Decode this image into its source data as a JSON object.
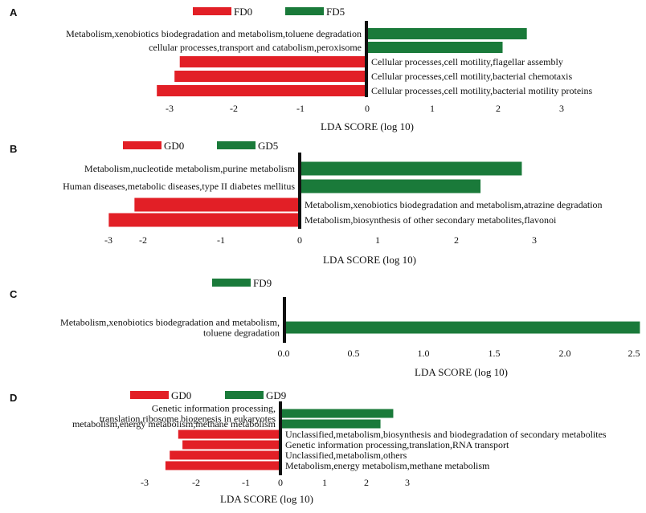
{
  "chart_data": [
    {
      "panel": "A",
      "type": "bar",
      "orientation": "horizontal",
      "xlabel": "LDA SCORE (log 10)",
      "legend": [
        {
          "name": "FD0",
          "color": "#e21f26"
        },
        {
          "name": "FD5",
          "color": "#1a7a3a"
        }
      ],
      "ticks": [
        "-3",
        "-2",
        "-1",
        "0",
        "1",
        "2",
        "3"
      ],
      "xlim": [
        -3.3,
        3.3
      ],
      "bars": [
        {
          "label": "Metabolism,xenobiotics biodegradation and metabolism,toluene degradation",
          "value": 2.45,
          "group": "FD5"
        },
        {
          "label": "cellular processes,transport and catabolism,peroxisome",
          "value": 2.08,
          "group": "FD5"
        },
        {
          "label": "Cellular processes,cell motility,flagellar assembly",
          "value": -2.85,
          "group": "FD0"
        },
        {
          "label": "Cellular processes,cell motility,bacterial chemotaxis",
          "value": -2.93,
          "group": "FD0"
        },
        {
          "label": "Cellular processes,cell motility,bacterial motility proteins",
          "value": -3.2,
          "group": "FD0"
        }
      ]
    },
    {
      "panel": "B",
      "type": "bar",
      "orientation": "horizontal",
      "xlabel": "LDA SCORE (log 10)",
      "legend": [
        {
          "name": "GD0",
          "color": "#e21f26"
        },
        {
          "name": "GD5",
          "color": "#1a7a3a"
        }
      ],
      "ticks": [
        "-3",
        "-2",
        "-1",
        "0",
        "1",
        "2",
        "3"
      ],
      "xlim": [
        -3.3,
        3.3
      ],
      "bars": [
        {
          "label": "Metabolism,nucleotide metabolism,purine metabolism",
          "value": 2.85,
          "group": "GD5"
        },
        {
          "label": "Human diseases,metabolic diseases,type II diabetes mellitus",
          "value": 2.32,
          "group": "GD5"
        },
        {
          "label": "Metabolism,xenobiotics biodegradation and metabolism,atrazine degradation",
          "value": -2.12,
          "group": "GD0"
        },
        {
          "label": "Metabolism,biosynthesis of other secondary metabolites,flavonoi",
          "value": -2.45,
          "group": "GD0"
        }
      ]
    },
    {
      "panel": "C",
      "type": "bar",
      "orientation": "horizontal",
      "xlabel": "LDA SCORE (log 10)",
      "legend": [
        {
          "name": "FD9",
          "color": "#1a7a3a"
        }
      ],
      "ticks": [
        "0.0",
        "0.5",
        "1.0",
        "1.5",
        "2.0",
        "2.5"
      ],
      "xlim": [
        0,
        2.55
      ],
      "bars": [
        {
          "label": "Metabolism,xenobiotics biodegradation and metabolism,\ntoluene degradation",
          "value": 2.55,
          "group": "FD9"
        }
      ]
    },
    {
      "panel": "D",
      "type": "bar",
      "orientation": "horizontal",
      "xlabel": "LDA SCORE (log 10)",
      "legend": [
        {
          "name": "GD0",
          "color": "#e21f26"
        },
        {
          "name": "GD9",
          "color": "#1a7a3a"
        }
      ],
      "ticks": [
        "-3",
        "-2",
        "-1",
        "0",
        "1",
        "2",
        "3"
      ],
      "xlim": [
        -3.3,
        3.3
      ],
      "bars": [
        {
          "label": "Genetic information processing,\ntranslation,ribosome biogenesis in eukaryotes",
          "value": 2.65,
          "group": "GD9"
        },
        {
          "label": "metabolism,energy metabolism,methane metabolism",
          "value": 2.35,
          "group": "GD9"
        },
        {
          "label": "Unclassified,metabolism,biosynthesis and biodegradation of secondary metabolites",
          "value": -2.4,
          "group": "GD0"
        },
        {
          "label": "Genetic information processing,translation,RNA transport",
          "value": -2.3,
          "group": "GD0"
        },
        {
          "label": "Unclassified,metabolism,others",
          "value": -2.6,
          "group": "GD0"
        },
        {
          "label": "Metabolism,energy metabolism,methane metabolism",
          "value": -2.7,
          "group": "GD0"
        }
      ]
    }
  ]
}
